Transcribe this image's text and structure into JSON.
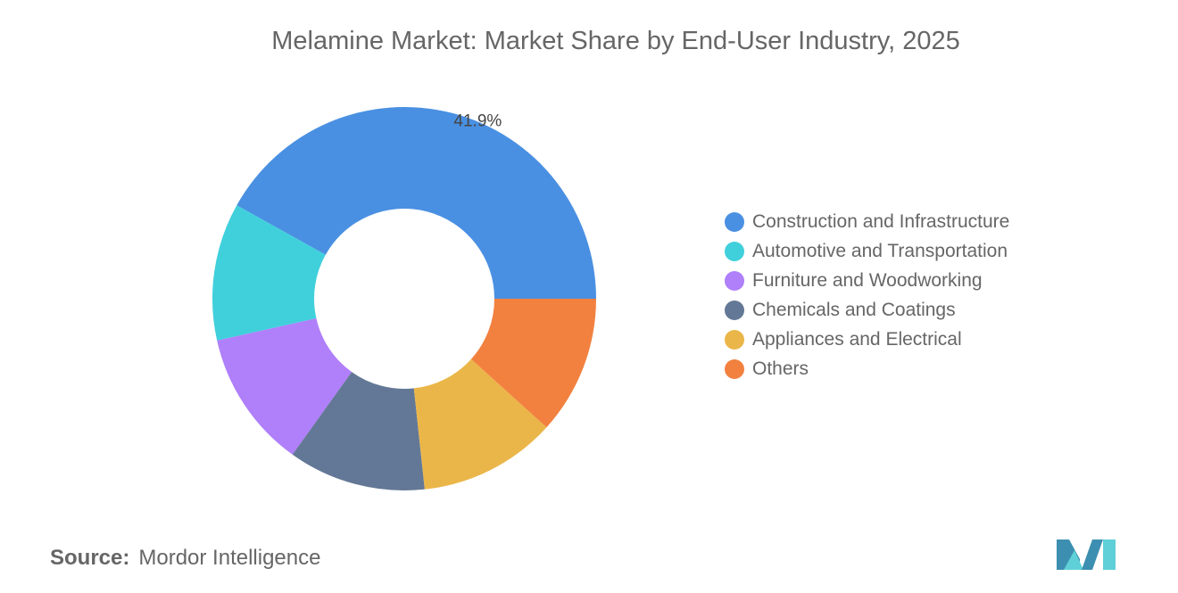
{
  "chart_data": {
    "type": "pie",
    "donut": true,
    "title": "Melamine Market: Market Share by End-User Industry, 2025",
    "categories": [
      "Construction and Infrastructure",
      "Automotive and Transportation",
      "Furniture and Woodworking",
      "Chemicals and Coatings",
      "Appliances and Electrical",
      "Others"
    ],
    "values": [
      41.9,
      11.6,
      11.6,
      11.6,
      11.6,
      11.7
    ],
    "colors": [
      "#4a90e2",
      "#40d0dc",
      "#b07ffa",
      "#637896",
      "#ebb649",
      "#f28140"
    ],
    "data_labels": [
      "41.9%",
      "",
      "",
      "",
      "",
      ""
    ],
    "legend_position": "right"
  },
  "source": {
    "label": "Source:",
    "text": "Mordor Intelligence"
  },
  "logo": {
    "text": "Mordor Intelligence"
  }
}
